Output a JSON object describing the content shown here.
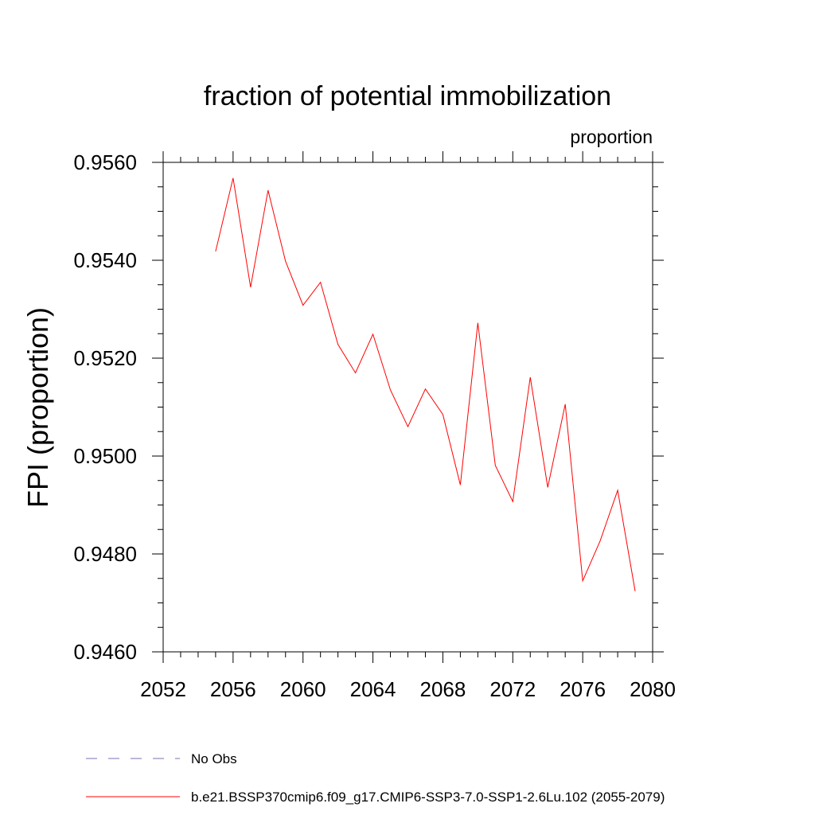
{
  "chart_data": {
    "type": "line",
    "title": "fraction of potential immobilization",
    "units_label": "proportion",
    "ylabel": "FPI  (proportion)",
    "xlabel": "",
    "xlim": [
      2052,
      2080
    ],
    "ylim": [
      0.946,
      0.956
    ],
    "x_ticks": [
      2052,
      2056,
      2060,
      2064,
      2068,
      2072,
      2076,
      2080
    ],
    "x_tick_labels": [
      "2052",
      "2056",
      "2060",
      "2064",
      "2068",
      "2072",
      "2076",
      "2080"
    ],
    "y_ticks": [
      0.946,
      0.948,
      0.95,
      0.952,
      0.954,
      0.956
    ],
    "y_tick_labels": [
      "0.9460",
      "0.9480",
      "0.9500",
      "0.9520",
      "0.9540",
      "0.9560"
    ],
    "grid": false,
    "legend_position": "bottom",
    "legend": [
      {
        "label": "No Obs",
        "color": "#7b6fb0",
        "style": "dashed"
      },
      {
        "label": "b.e21.BSSP370cmip6.f09_g17.CMIP6-SSP3-7.0-SSP1-2.6Lu.102 (2055-2079)",
        "color": "#ff0000",
        "style": "solid"
      }
    ],
    "series": [
      {
        "color": "#ff0000",
        "x": [
          2055,
          2056,
          2057,
          2058,
          2059,
          2060,
          2061,
          2062,
          2063,
          2064,
          2065,
          2066,
          2067,
          2068,
          2069,
          2070,
          2071,
          2072,
          2073,
          2074,
          2075,
          2076,
          2077,
          2078,
          2079
        ],
        "values": [
          0.95418,
          0.95568,
          0.95345,
          0.95543,
          0.95398,
          0.95308,
          0.95355,
          0.95228,
          0.9517,
          0.95249,
          0.95135,
          0.9506,
          0.95137,
          0.95085,
          0.94941,
          0.95272,
          0.94981,
          0.94907,
          0.95161,
          0.94936,
          0.95106,
          0.94745,
          0.94827,
          0.9493,
          0.94724
        ]
      }
    ]
  }
}
